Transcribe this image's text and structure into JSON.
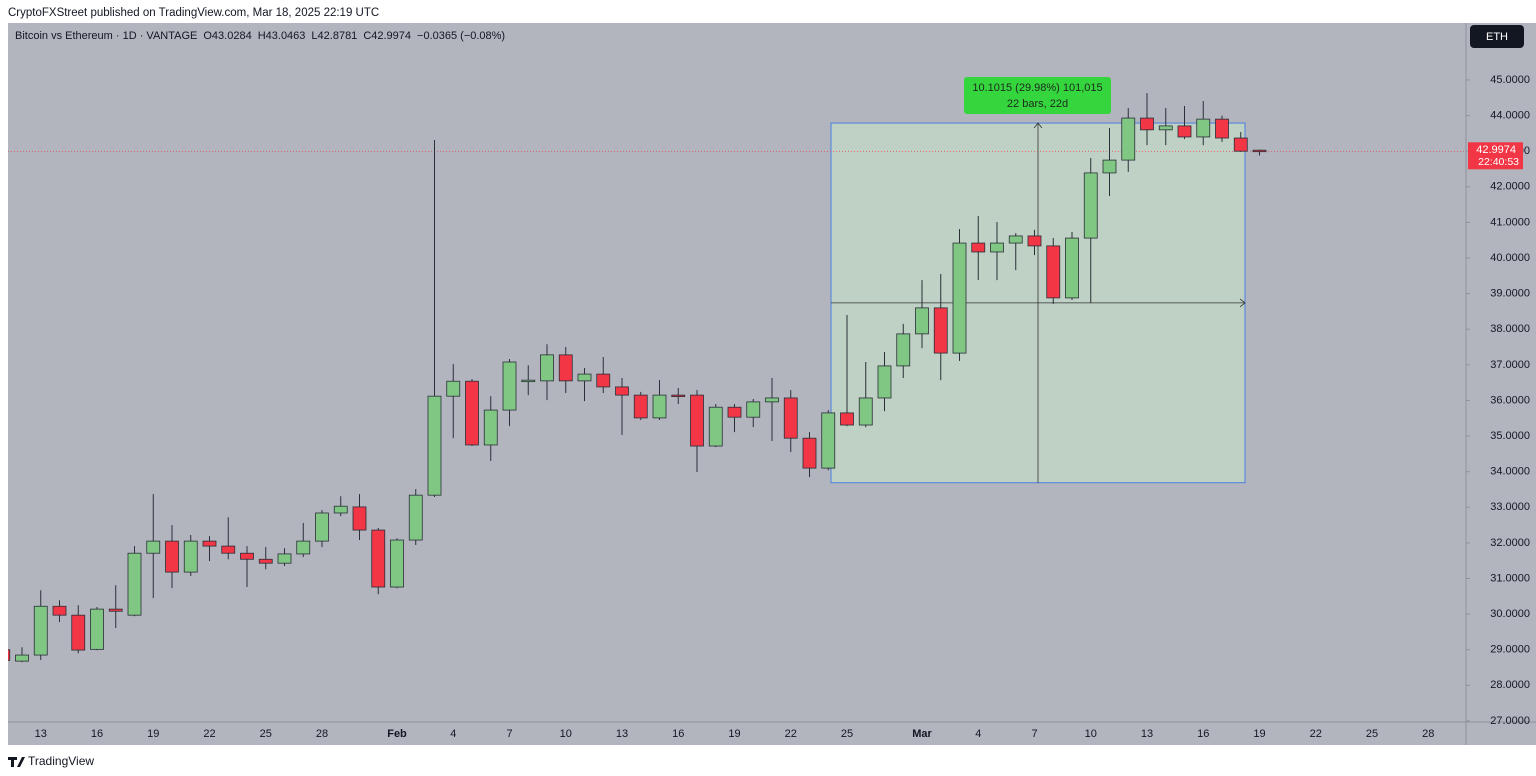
{
  "header": {
    "text": "CryptoFXStreet published on TradingView.com, Mar 18, 2025 22:19 UTC"
  },
  "footer": {
    "logo": "TradingView"
  },
  "chart_data": {
    "type": "candlestick",
    "title": "Bitcoin vs Ethereum · 1D · VANTAGE",
    "legend_values": [
      "O43.0284",
      "H43.0463",
      "L42.8781",
      "C42.9974",
      "−0.0365 (−0.08%)"
    ],
    "symbol": "ETH",
    "categories": [
      null,
      null,
      "13",
      null,
      null,
      "16",
      null,
      null,
      "19",
      null,
      null,
      "22",
      null,
      null,
      "25",
      null,
      null,
      "28",
      null,
      null,
      null,
      "Feb",
      null,
      null,
      "4",
      null,
      null,
      "7",
      null,
      null,
      "10",
      null,
      null,
      "13",
      null,
      null,
      "16",
      null,
      null,
      "19",
      null,
      null,
      "22",
      null,
      null,
      "25",
      null,
      null,
      null,
      "Mar",
      null,
      null,
      "4",
      null,
      null,
      "7",
      null,
      null,
      "10",
      null,
      null,
      "13",
      null,
      null,
      "16",
      null,
      null,
      "19",
      null,
      null,
      "22",
      null,
      null,
      "25",
      null,
      null,
      "28"
    ],
    "open": [
      29.0,
      28.68,
      28.85,
      30.22,
      29.97,
      29.01,
      30.14,
      29.97,
      31.71,
      32.05,
      31.18,
      32.05,
      31.91,
      31.71,
      31.54,
      31.43,
      31.69,
      32.05,
      32.84,
      33.01,
      32.36,
      30.76,
      32.08,
      33.34,
      36.12,
      36.54,
      34.75,
      35.73,
      36.55,
      36.55,
      37.28,
      36.55,
      36.74,
      36.38,
      36.15,
      35.51,
      36.15,
      36.15,
      34.72,
      35.81,
      35.53,
      35.96,
      36.07,
      34.94,
      34.1,
      35.65,
      35.31,
      36.07,
      36.97,
      37.87,
      38.6,
      37.33,
      40.42,
      40.17,
      40.42,
      40.62,
      40.34,
      38.88,
      40.56,
      42.39,
      42.75,
      43.93,
      43.6,
      43.71,
      43.4,
      43.9,
      43.37,
      43.0284,
      null,
      null,
      null,
      null,
      null,
      null,
      null,
      null,
      null
    ],
    "high": [
      29.05,
      29.07,
      30.67,
      30.39,
      30.25,
      30.2,
      30.81,
      31.91,
      33.37,
      32.5,
      32.22,
      32.19,
      32.72,
      31.91,
      31.88,
      31.85,
      32.56,
      32.92,
      33.31,
      33.37,
      32.42,
      32.13,
      33.51,
      43.31,
      37.02,
      36.6,
      36.12,
      37.16,
      36.99,
      37.58,
      37.5,
      36.91,
      37.22,
      36.63,
      36.24,
      36.57,
      36.35,
      36.29,
      35.9,
      35.9,
      36.04,
      36.63,
      36.29,
      35.11,
      35.73,
      38.4,
      37.08,
      37.36,
      38.15,
      39.38,
      39.55,
      40.81,
      41.18,
      41.01,
      40.7,
      40.79,
      40.56,
      40.73,
      42.81,
      43.65,
      44.21,
      44.63,
      44.21,
      44.27,
      44.41,
      44.0,
      43.54,
      43.0463,
      null,
      null,
      null,
      null,
      null,
      null,
      null,
      null,
      null
    ],
    "low": [
      28.62,
      28.65,
      28.71,
      29.78,
      28.9,
      28.99,
      29.61,
      29.94,
      30.45,
      30.73,
      31.07,
      31.49,
      31.54,
      30.76,
      31.26,
      31.35,
      31.6,
      31.88,
      32.75,
      32.08,
      30.56,
      30.73,
      31.94,
      33.29,
      34.94,
      34.72,
      34.3,
      35.28,
      36.15,
      36.01,
      36.21,
      35.98,
      36.21,
      35.03,
      35.45,
      35.45,
      35.9,
      33.99,
      34.69,
      35.11,
      35.25,
      34.86,
      34.55,
      33.85,
      34.04,
      35.28,
      35.25,
      35.7,
      36.63,
      37.47,
      36.57,
      37.11,
      39.38,
      39.38,
      39.66,
      40.08,
      38.71,
      38.82,
      38.74,
      41.74,
      42.42,
      43.17,
      43.17,
      43.34,
      43.17,
      43.26,
      42.98,
      42.8781,
      null,
      null,
      null,
      null,
      null,
      null,
      null,
      null,
      null
    ],
    "close": [
      28.7,
      28.85,
      30.22,
      29.97,
      28.99,
      30.14,
      30.08,
      31.71,
      32.05,
      31.18,
      32.05,
      31.91,
      31.71,
      31.54,
      31.43,
      31.69,
      32.05,
      32.84,
      33.03,
      32.36,
      30.76,
      32.08,
      33.34,
      36.12,
      36.54,
      34.75,
      35.73,
      37.08,
      36.57,
      37.28,
      36.55,
      36.74,
      36.38,
      36.15,
      35.51,
      36.15,
      36.12,
      34.72,
      35.81,
      35.53,
      35.96,
      36.07,
      34.94,
      34.1,
      35.65,
      35.31,
      36.07,
      36.97,
      37.87,
      38.6,
      37.33,
      40.42,
      40.17,
      40.42,
      40.62,
      40.34,
      38.88,
      40.56,
      42.39,
      42.75,
      43.93,
      43.6,
      43.71,
      43.4,
      43.9,
      43.37,
      43.0,
      42.9974,
      null,
      null,
      null,
      null,
      null,
      null,
      null,
      null,
      null
    ],
    "up_color": "#81c784",
    "down_color": "#f23645",
    "ylim": [
      26.97,
      46.6
    ],
    "yticks": [
      {
        "value": 45,
        "label": "45.0000"
      },
      {
        "value": 44,
        "label": "44.0000"
      },
      {
        "value": 43,
        "label": "43.0000"
      },
      {
        "value": 42,
        "label": "42.0000"
      },
      {
        "value": 41,
        "label": "41.0000"
      },
      {
        "value": 40,
        "label": "40.0000"
      },
      {
        "value": 39,
        "label": "39.0000"
      },
      {
        "value": 38,
        "label": "38.0000"
      },
      {
        "value": 37,
        "label": "37.0000"
      },
      {
        "value": 36,
        "label": "36.0000"
      },
      {
        "value": 35,
        "label": "35.0000"
      },
      {
        "value": 34,
        "label": "34.0000"
      },
      {
        "value": 33,
        "label": "33.0000"
      },
      {
        "value": 32,
        "label": "32.0000"
      },
      {
        "value": 31,
        "label": "31.0000"
      },
      {
        "value": 30,
        "label": "30.0000"
      },
      {
        "value": 29,
        "label": "29.0000"
      },
      {
        "value": 28,
        "label": "28.0000"
      },
      {
        "value": 27,
        "label": "27.0000"
      }
    ],
    "last_price": {
      "value": 42.9974,
      "countdown": "22:40:53",
      "color": "#f23645"
    },
    "measure": {
      "high": 43.79,
      "low": 33.69,
      "label": "10.1015 (29.98%) 101,015",
      "sublabel": "22 bars, 22d"
    }
  }
}
